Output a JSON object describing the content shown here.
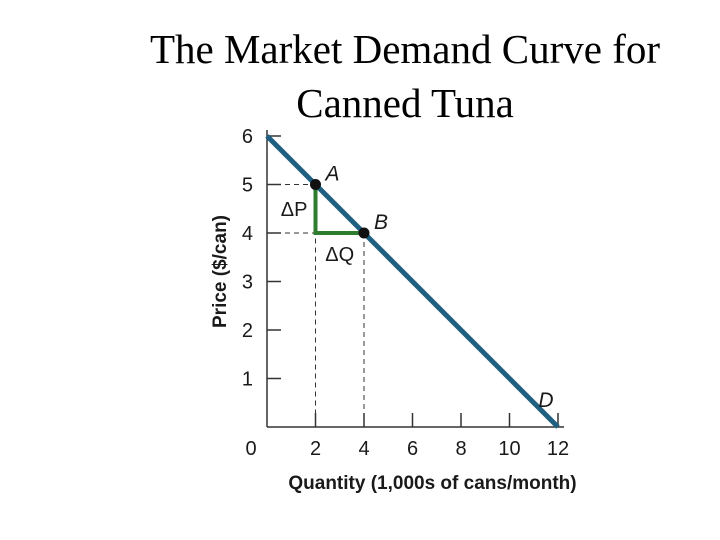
{
  "chart_data": {
    "type": "line",
    "title_line1": "The Market Demand Curve for",
    "title_line2": "Canned Tuna",
    "xlabel": "Quantity (1,000s of cans/month)",
    "ylabel": "Price ($/can)",
    "xlim": [
      0,
      12
    ],
    "ylim": [
      0,
      6
    ],
    "x_ticks": [
      0,
      2,
      4,
      6,
      8,
      10,
      12
    ],
    "y_ticks": [
      1,
      2,
      3,
      4,
      5,
      6
    ],
    "series": [
      {
        "label": "D",
        "color": "#1f5f82",
        "points": [
          [
            0,
            6
          ],
          [
            12,
            0
          ]
        ]
      }
    ],
    "points": [
      {
        "label": "A",
        "x": 2,
        "y": 5
      },
      {
        "label": "B",
        "x": 4,
        "y": 4
      }
    ],
    "delta_p": {
      "label": "ΔP",
      "x": 2,
      "y_from": 5,
      "y_to": 4,
      "color": "#2e7d2e"
    },
    "delta_q": {
      "label": "ΔQ",
      "y": 4,
      "x_from": 2,
      "x_to": 4,
      "color": "#2e7d2e"
    },
    "grid": false,
    "legend": false
  }
}
